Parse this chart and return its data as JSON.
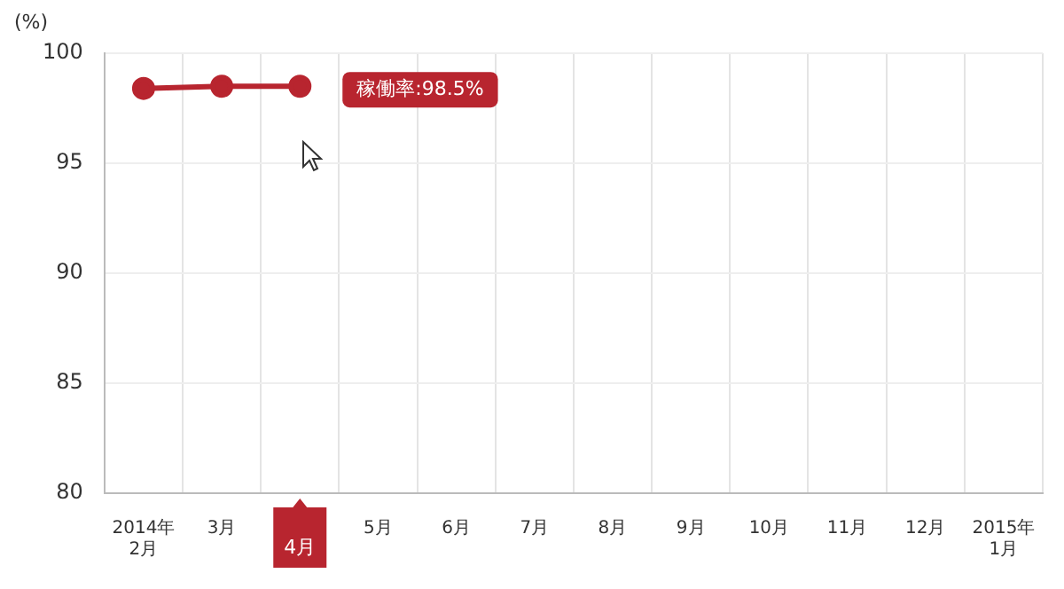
{
  "chart_data": {
    "type": "line",
    "ylabel": "(%)",
    "categories": [
      "2014年\n2月",
      "3月",
      "4月",
      "5月",
      "6月",
      "7月",
      "8月",
      "9月",
      "10月",
      "11月",
      "12月",
      "2015年\n1月"
    ],
    "series": [
      {
        "color": "#b8252f",
        "values": [
          98.4,
          98.5,
          98.5,
          null,
          null,
          null,
          null,
          null,
          null,
          null,
          null,
          null
        ]
      }
    ],
    "ylim": [
      80,
      100
    ],
    "yticks": [
      80,
      85,
      90,
      95,
      100
    ],
    "grid": true,
    "legend": false,
    "marker": "circle",
    "line_style": "solid",
    "annotations": [
      {
        "text": "稼働率:98.5%",
        "x": "4月",
        "y": 98.5
      }
    ]
  }
}
